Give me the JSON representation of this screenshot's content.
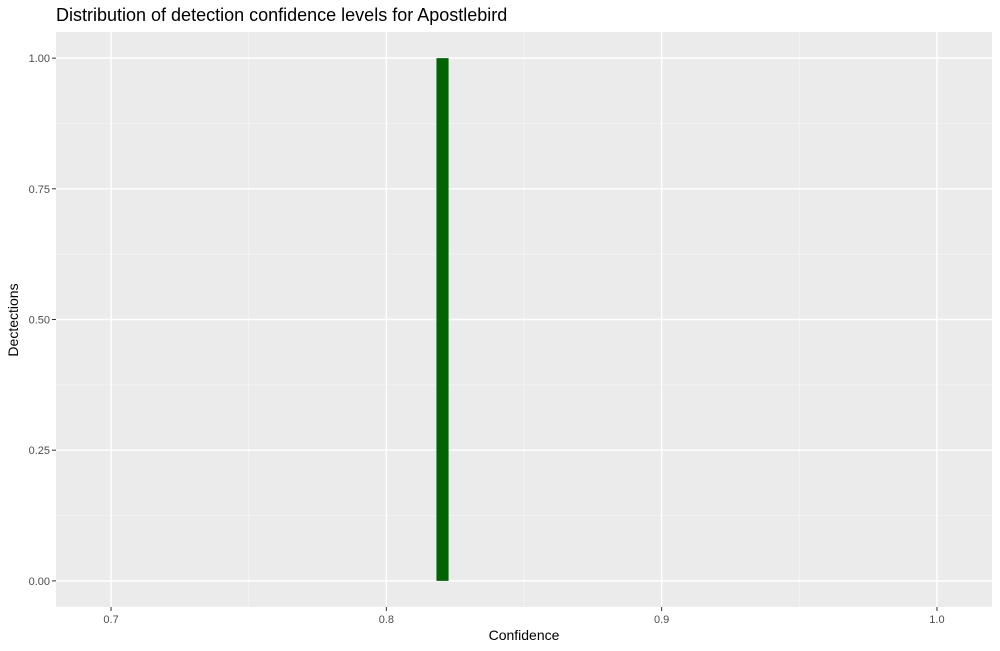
{
  "chart_data": {
    "type": "bar",
    "title": "Distribution of detection confidence levels for Apostlebird",
    "xlabel": "Confidence",
    "ylabel": "Dectections",
    "xlim": [
      0.68,
      1.02
    ],
    "ylim": [
      -0.05,
      1.05
    ],
    "x_ticks": [
      0.7,
      0.8,
      0.9,
      1.0
    ],
    "x_tick_labels": [
      "0.7",
      "0.8",
      "0.9",
      "1.0"
    ],
    "y_ticks": [
      0.0,
      0.25,
      0.5,
      0.75,
      1.0
    ],
    "y_tick_labels": [
      "0.00",
      "0.25",
      "0.50",
      "0.75",
      "1.00"
    ],
    "bars": [
      {
        "x_start": 0.8182,
        "x_end": 0.8226,
        "count": 1.0
      }
    ],
    "grid": true,
    "legend": "none",
    "colors": {
      "panel_background": "#ebebeb",
      "grid_major": "#ffffff",
      "grid_minor": "#f5f5f5",
      "bar_fill": "#006400"
    }
  }
}
